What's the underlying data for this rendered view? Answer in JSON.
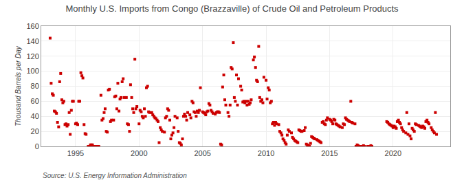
{
  "chart_data": {
    "type": "scatter",
    "title": "Monthly U.S. Imports from Congo (Brazzaville) of Crude Oil and Petroleum Products",
    "ylabel": "Thousand Barrels per Day",
    "annotations": [
      "Source: U.S. Energy Information Administration"
    ],
    "color": "#cc0000",
    "marker": "square",
    "grid": true,
    "xlim": [
      1992.3,
      2024.5
    ],
    "ylim": [
      0,
      160
    ],
    "xticks": [
      1995,
      2000,
      2005,
      2010,
      2015,
      2020
    ],
    "yticks": [
      0,
      20,
      40,
      60,
      80,
      100,
      120,
      140,
      160
    ],
    "x": [
      1993.0,
      1993.08,
      1993.17,
      1993.25,
      1993.33,
      1993.42,
      1993.5,
      1993.58,
      1993.67,
      1993.75,
      1993.83,
      1993.92,
      1994.0,
      1994.08,
      1994.17,
      1994.25,
      1994.33,
      1994.42,
      1994.5,
      1994.58,
      1994.67,
      1994.75,
      1994.83,
      1995.0,
      1995.08,
      1995.17,
      1995.25,
      1995.33,
      1995.42,
      1995.5,
      1995.58,
      1995.67,
      1995.75,
      1995.83,
      1996.0,
      1996.08,
      1996.17,
      1996.25,
      1996.33,
      1996.42,
      1996.5,
      1996.58,
      1996.67,
      1996.75,
      1996.83,
      1997.0,
      1997.08,
      1997.17,
      1997.25,
      1997.33,
      1997.42,
      1997.5,
      1997.58,
      1997.67,
      1997.75,
      1997.83,
      1998.0,
      1998.08,
      1998.17,
      1998.25,
      1998.33,
      1998.42,
      1998.5,
      1998.58,
      1998.67,
      1998.75,
      1998.83,
      1999.0,
      1999.08,
      1999.17,
      1999.25,
      1999.33,
      1999.42,
      1999.5,
      1999.58,
      1999.67,
      1999.75,
      1999.83,
      2000.0,
      2000.08,
      2000.17,
      2000.25,
      2000.33,
      2000.42,
      2000.5,
      2000.58,
      2000.67,
      2000.75,
      2000.83,
      2001.0,
      2001.08,
      2001.17,
      2001.25,
      2001.33,
      2001.42,
      2001.5,
      2001.58,
      2001.67,
      2001.75,
      2001.83,
      2002.0,
      2002.08,
      2002.17,
      2002.25,
      2002.33,
      2002.42,
      2002.5,
      2002.58,
      2002.67,
      2002.75,
      2002.83,
      2003.0,
      2003.08,
      2003.17,
      2003.25,
      2003.33,
      2003.42,
      2003.5,
      2003.58,
      2003.67,
      2003.75,
      2003.83,
      2004.0,
      2004.08,
      2004.17,
      2004.25,
      2004.33,
      2004.42,
      2004.5,
      2004.58,
      2004.67,
      2004.75,
      2004.83,
      2005.0,
      2005.08,
      2005.17,
      2005.25,
      2005.33,
      2005.42,
      2005.5,
      2005.58,
      2005.67,
      2005.75,
      2005.83,
      2006.0,
      2006.08,
      2006.17,
      2006.25,
      2006.33,
      2006.42,
      2006.5,
      2006.58,
      2006.67,
      2006.75,
      2006.83,
      2007.0,
      2007.08,
      2007.17,
      2007.25,
      2007.33,
      2007.42,
      2007.5,
      2007.58,
      2007.67,
      2007.75,
      2007.83,
      2008.0,
      2008.08,
      2008.17,
      2008.25,
      2008.33,
      2008.42,
      2008.5,
      2008.58,
      2008.67,
      2008.75,
      2008.83,
      2009.0,
      2009.08,
      2009.17,
      2009.25,
      2009.33,
      2009.42,
      2009.5,
      2009.58,
      2009.67,
      2009.75,
      2009.83,
      2010.0,
      2010.08,
      2010.17,
      2010.25,
      2010.33,
      2010.42,
      2010.5,
      2010.58,
      2010.67,
      2010.75,
      2010.83,
      2011.0,
      2011.08,
      2011.17,
      2011.25,
      2011.33,
      2011.42,
      2011.5,
      2011.58,
      2011.67,
      2011.75,
      2011.83,
      2012.0,
      2012.08,
      2012.17,
      2012.25,
      2012.33,
      2012.42,
      2012.5,
      2012.58,
      2012.67,
      2012.75,
      2012.83,
      2013.0,
      2013.08,
      2013.17,
      2013.25,
      2013.33,
      2013.42,
      2013.5,
      2013.58,
      2013.67,
      2013.75,
      2013.83,
      2014.0,
      2014.08,
      2014.17,
      2014.25,
      2014.33,
      2014.42,
      2014.5,
      2014.58,
      2014.67,
      2014.75,
      2014.83,
      2015.0,
      2015.08,
      2015.17,
      2015.25,
      2015.33,
      2015.42,
      2015.5,
      2015.58,
      2015.67,
      2015.75,
      2015.83,
      2016.0,
      2016.08,
      2016.17,
      2016.25,
      2016.33,
      2016.42,
      2016.5,
      2016.58,
      2016.67,
      2016.75,
      2016.83,
      2017.0,
      2017.08,
      2017.17,
      2017.25,
      2017.33,
      2017.42,
      2017.5,
      2017.58,
      2017.67,
      2017.75,
      2018.0,
      2018.08,
      2018.17,
      2018.25,
      2018.33,
      2019.5,
      2019.58,
      2019.67,
      2019.75,
      2019.83,
      2019.92,
      2020.0,
      2020.08,
      2020.17,
      2020.25,
      2020.33,
      2020.42,
      2020.5,
      2020.58,
      2020.67,
      2020.75,
      2020.83,
      2021.0,
      2021.08,
      2021.17,
      2021.25,
      2021.33,
      2021.42,
      2021.5,
      2021.58,
      2021.67,
      2021.75,
      2021.83,
      2022.0,
      2022.08,
      2022.17,
      2022.25,
      2022.33,
      2022.42,
      2022.5,
      2022.58,
      2022.67,
      2022.75,
      2022.83,
      2023.0,
      2023.08,
      2023.17,
      2023.25,
      2023.33,
      2023.42
    ],
    "values": [
      144,
      84,
      70,
      68,
      47,
      46,
      44,
      32,
      26,
      86,
      97,
      62,
      58,
      60,
      29,
      30,
      27,
      29,
      45,
      16,
      48,
      60,
      60,
      30,
      31,
      29,
      60,
      60,
      98,
      94,
      91,
      29,
      17,
      16,
      0,
      0,
      2,
      2,
      2,
      0,
      0,
      0,
      0,
      0,
      0,
      68,
      35,
      37,
      45,
      50,
      20,
      19,
      75,
      76,
      33,
      35,
      35,
      66,
      67,
      50,
      84,
      47,
      63,
      65,
      86,
      90,
      65,
      65,
      30,
      29,
      20,
      82,
      65,
      50,
      45,
      116,
      50,
      53,
      30,
      48,
      46,
      40,
      38,
      50,
      40,
      78,
      80,
      46,
      45,
      45,
      42,
      40,
      38,
      37,
      35,
      33,
      5,
      25,
      22,
      20,
      19,
      38,
      40,
      50,
      48,
      35,
      10,
      15,
      18,
      25,
      40,
      38,
      20,
      5,
      4,
      2,
      10,
      40,
      43,
      40,
      35,
      45,
      42,
      38,
      60,
      58,
      46,
      45,
      40,
      47,
      45,
      48,
      78,
      46,
      45,
      44,
      42,
      46,
      47,
      57,
      55,
      48,
      46,
      44,
      43,
      45,
      46,
      46,
      45,
      3,
      2,
      79,
      95,
      62,
      55,
      45,
      40,
      55,
      105,
      103,
      138,
      65,
      60,
      95,
      55,
      90,
      80,
      75,
      59,
      60,
      58,
      60,
      55,
      60,
      56,
      58,
      62,
      115,
      119,
      105,
      88,
      86,
      133,
      65,
      60,
      62,
      58,
      92,
      88,
      63,
      78,
      75,
      58,
      60,
      30,
      32,
      28,
      32,
      30,
      29,
      20,
      18,
      15,
      10,
      8,
      5,
      3,
      15,
      22,
      20,
      18,
      12,
      10,
      8,
      7,
      6,
      5,
      22,
      21,
      20,
      20,
      21,
      25,
      3,
      2,
      1,
      0,
      4,
      13,
      12,
      11,
      10,
      9,
      8,
      7,
      6,
      5,
      32,
      33,
      30,
      29,
      35,
      38,
      36,
      35,
      33,
      30,
      36,
      35,
      30,
      29,
      28,
      27,
      26,
      25,
      30,
      29,
      38,
      36,
      35,
      34,
      33,
      60,
      32,
      31,
      30,
      0,
      2,
      1,
      0,
      0,
      0,
      0,
      1,
      0,
      0,
      0,
      0,
      1,
      0,
      33,
      32,
      30,
      29,
      28,
      27,
      25,
      27,
      26,
      24,
      33,
      35,
      32,
      30,
      25,
      22,
      20,
      18,
      45,
      16,
      30,
      14,
      10,
      24,
      22,
      20,
      30,
      29,
      28,
      27,
      26,
      25,
      27,
      26,
      24,
      33,
      35,
      32,
      30,
      25,
      22,
      20,
      18,
      45,
      16
    ]
  }
}
